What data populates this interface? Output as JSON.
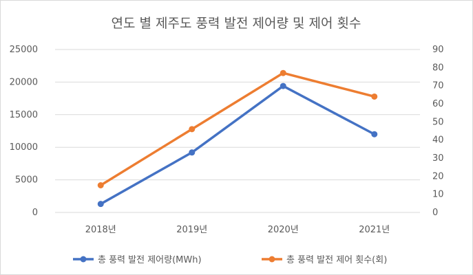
{
  "chart_data": {
    "type": "line",
    "title": "연도 별 제주도 풍력 발전 제어량 및 제어 횟수",
    "categories": [
      "2018년",
      "2019년",
      "2020년",
      "2021년"
    ],
    "series": [
      {
        "name": "총 풍력 발전 제어량(MWh)",
        "axis": "left",
        "color": "#4472C4",
        "values": [
          1300,
          9200,
          19400,
          12000
        ]
      },
      {
        "name": "총 풍력 발전 제어 횟수(회)",
        "axis": "right",
        "color": "#ED7D31",
        "values": [
          15,
          46,
          77,
          64
        ]
      }
    ],
    "y_left": {
      "min": 0,
      "max": 25000,
      "ticks": [
        "0",
        "5000",
        "10000",
        "15000",
        "20000",
        "25000"
      ]
    },
    "y_right": {
      "min": 0,
      "max": 90,
      "ticks": [
        "0",
        "10",
        "20",
        "30",
        "40",
        "50",
        "60",
        "70",
        "80",
        "90"
      ]
    },
    "grid": true,
    "legend": "bottom"
  }
}
